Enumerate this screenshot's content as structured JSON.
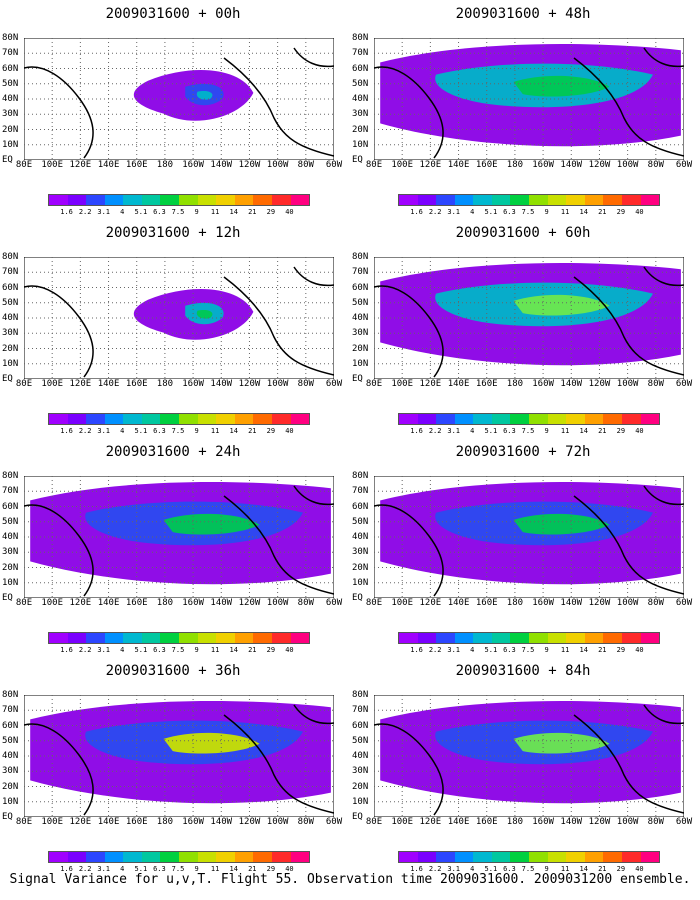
{
  "panels": [
    {
      "title": "2009031600 + 00h",
      "blobs": [
        {
          "shape": "a",
          "color": "#8a00e6"
        },
        {
          "shape": "b",
          "color": "#2b4bf0"
        },
        {
          "shape": "c",
          "color": "#00b5c8"
        }
      ]
    },
    {
      "title": "2009031600 + 48h",
      "blobs": [
        {
          "shape": "wide",
          "color": "#8a00e6"
        },
        {
          "shape": "mid",
          "color": "#00b5c8"
        },
        {
          "shape": "core",
          "color": "#00c851"
        }
      ]
    },
    {
      "title": "2009031600 + 12h",
      "blobs": [
        {
          "shape": "a",
          "color": "#8a00e6"
        },
        {
          "shape": "b",
          "color": "#00b5c8"
        },
        {
          "shape": "c",
          "color": "#00c851"
        }
      ]
    },
    {
      "title": "2009031600 + 60h",
      "blobs": [
        {
          "shape": "wide",
          "color": "#8a00e6"
        },
        {
          "shape": "mid",
          "color": "#00b5c8"
        },
        {
          "shape": "core",
          "color": "#6de84d"
        }
      ]
    },
    {
      "title": "2009031600 + 24h",
      "blobs": [
        {
          "shape": "wide",
          "color": "#8a00e6"
        },
        {
          "shape": "mid",
          "color": "#2b4bf0"
        },
        {
          "shape": "core",
          "color": "#00c851"
        }
      ]
    },
    {
      "title": "2009031600 + 72h",
      "blobs": [
        {
          "shape": "wide",
          "color": "#8a00e6"
        },
        {
          "shape": "mid",
          "color": "#2b4bf0"
        },
        {
          "shape": "core",
          "color": "#00c851"
        }
      ]
    },
    {
      "title": "2009031600 + 36h",
      "blobs": [
        {
          "shape": "wide",
          "color": "#8a00e6"
        },
        {
          "shape": "mid",
          "color": "#2b4bf0"
        },
        {
          "shape": "core",
          "color": "#c8e200"
        }
      ]
    },
    {
      "title": "2009031600 + 84h",
      "blobs": [
        {
          "shape": "wide",
          "color": "#8a00e6"
        },
        {
          "shape": "mid",
          "color": "#2b4bf0"
        },
        {
          "shape": "core",
          "color": "#6de84d"
        }
      ]
    }
  ],
  "lat_labels": [
    "80N",
    "70N",
    "60N",
    "50N",
    "40N",
    "30N",
    "20N",
    "10N",
    "EQ"
  ],
  "lon_labels": [
    "80E",
    "100E",
    "120E",
    "140E",
    "160E",
    "180",
    "160W",
    "140W",
    "120W",
    "100W",
    "80W",
    "60W"
  ],
  "colorbar": {
    "colors": [
      "#a000ff",
      "#7a00ff",
      "#2c46ff",
      "#0090ff",
      "#00b8d0",
      "#00c8a0",
      "#00d040",
      "#90e000",
      "#c8e000",
      "#f0d000",
      "#ffa000",
      "#ff6a00",
      "#ff2a2a",
      "#ff0080"
    ],
    "labels": [
      "1.6",
      "2.2",
      "3.1",
      "4",
      "5.1",
      "6.3",
      "7.5",
      "9",
      "11",
      "14",
      "21",
      "29",
      "40"
    ]
  },
  "caption": "Signal Variance for u,v,T. Flight 55. Observation time 2009031600. 2009031200 ensemble."
}
